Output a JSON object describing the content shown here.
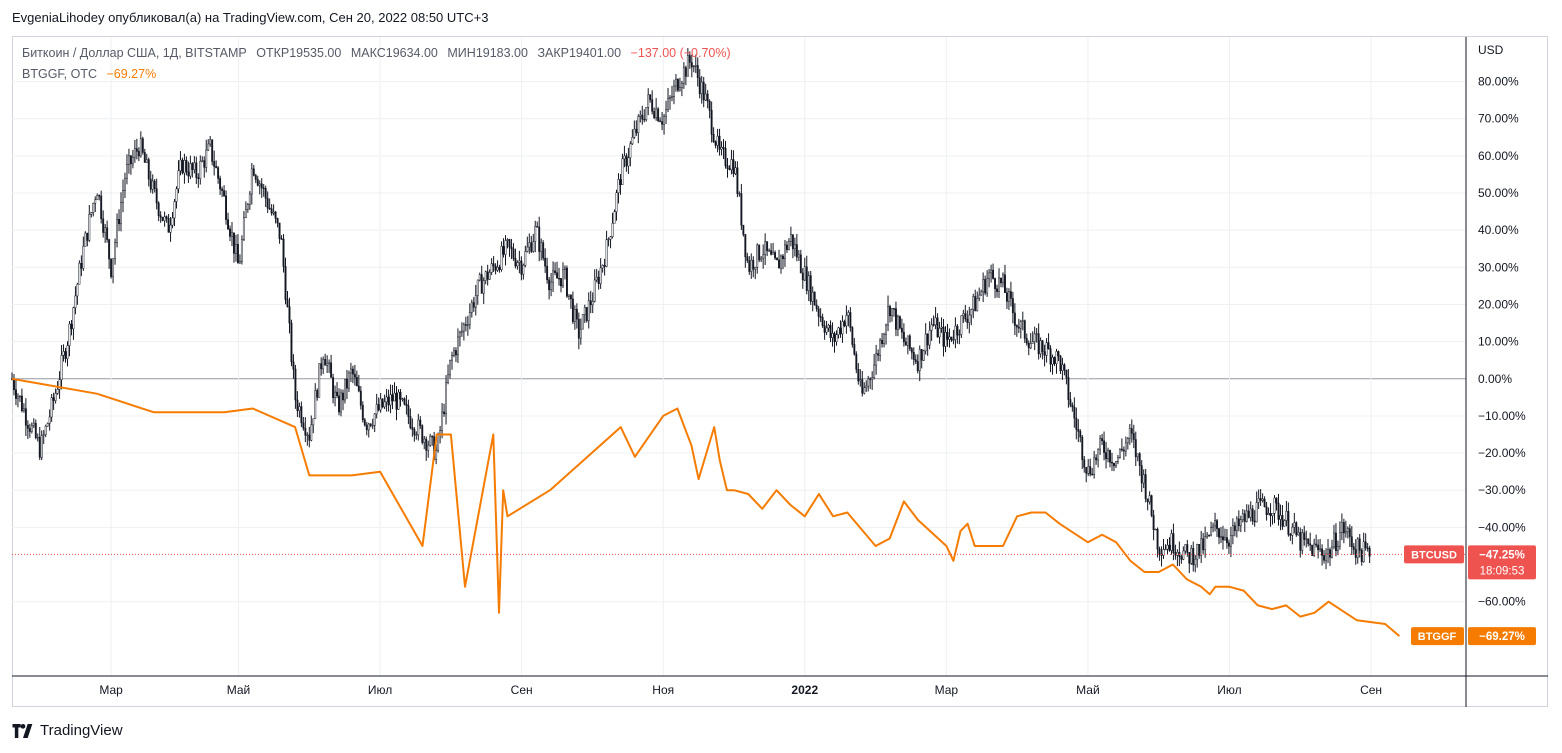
{
  "header": {
    "publisher_text": "EvgeniaLihodey опубликовал(а) на TradingView.com, Сен 20, 2022 08:50 UTC+3"
  },
  "legend": {
    "main_symbol": "Биткоин / Доллар США, 1Д, BITSTAMP",
    "open_label": "ОТКР",
    "open_value": "19535.00",
    "high_label": "МАКС",
    "high_value": "19634.00",
    "low_label": "МИН",
    "low_value": "19183.00",
    "close_label": "ЗАКР",
    "close_value": "19401.00",
    "change": "−137.00 (−0.70%)",
    "compare_symbol": "BTGGF, OTC",
    "compare_change": "−69.27%"
  },
  "footer": {
    "brand": "TradingView"
  },
  "colors": {
    "candle": "#131722",
    "compare_line": "#f57c00",
    "btc_badge": "#ef5350",
    "btggf_badge": "#f57c00",
    "grid": "#eef0f3",
    "zero_line": "#9598a1"
  },
  "chart_data": {
    "type": "line",
    "title": "Биткоин / Доллар США, 1Д, BITSTAMP vs BTGGF, OTC",
    "xlabel": "",
    "ylabel": "USD",
    "y_unit_label": "USD",
    "ylim": [
      -80,
      92
    ],
    "y_ticks": [
      80,
      70,
      60,
      50,
      40,
      30,
      20,
      10,
      0,
      -10,
      -20,
      -30,
      -40,
      -60
    ],
    "y_tick_labels": [
      "80.00%",
      "70.00%",
      "60.00%",
      "50.00%",
      "40.00%",
      "30.00%",
      "20.00%",
      "10.00%",
      "0.00%",
      "−10.00%",
      "−20.00%",
      "−30.00%",
      "−40.00%",
      "−60.00%"
    ],
    "x_range": [
      0,
      102
    ],
    "x_ticks": [
      7,
      16,
      26,
      36,
      46,
      56,
      66,
      76,
      86,
      96
    ],
    "x_tick_labels": [
      "Мар",
      "Май",
      "Июл",
      "Сен",
      "Ноя",
      "2022",
      "Мар",
      "Май",
      "Июл",
      "Сен"
    ],
    "series": [
      {
        "name": "BTCUSD",
        "style": "candles",
        "last_label": "−47.25%",
        "countdown": "18:09:53",
        "points": [
          [
            0,
            0
          ],
          [
            1,
            -10
          ],
          [
            2,
            -19
          ],
          [
            3,
            -5
          ],
          [
            4,
            12
          ],
          [
            5,
            34
          ],
          [
            6,
            52
          ],
          [
            7,
            30
          ],
          [
            8,
            55
          ],
          [
            9,
            63
          ],
          [
            10,
            50
          ],
          [
            11,
            40
          ],
          [
            12,
            58
          ],
          [
            13,
            55
          ],
          [
            14,
            62
          ],
          [
            15,
            48
          ],
          [
            16,
            30
          ],
          [
            17,
            58
          ],
          [
            18,
            48
          ],
          [
            19,
            38
          ],
          [
            20,
            -5
          ],
          [
            21,
            -15
          ],
          [
            22,
            8
          ],
          [
            23,
            -8
          ],
          [
            24,
            2
          ],
          [
            25,
            -12
          ],
          [
            26,
            -8
          ],
          [
            27,
            -5
          ],
          [
            28,
            -10
          ],
          [
            29,
            -15
          ],
          [
            30,
            -20
          ],
          [
            31,
            5
          ],
          [
            32,
            15
          ],
          [
            33,
            25
          ],
          [
            34,
            30
          ],
          [
            35,
            35
          ],
          [
            36,
            31
          ],
          [
            37,
            40
          ],
          [
            38,
            26
          ],
          [
            39,
            28
          ],
          [
            40,
            12
          ],
          [
            41,
            22
          ],
          [
            42,
            35
          ],
          [
            43,
            55
          ],
          [
            44,
            66
          ],
          [
            45,
            75
          ],
          [
            46,
            70
          ],
          [
            47,
            80
          ],
          [
            48,
            86
          ],
          [
            49,
            75
          ],
          [
            50,
            60
          ],
          [
            51,
            58
          ],
          [
            52,
            30
          ],
          [
            53,
            35
          ],
          [
            54,
            30
          ],
          [
            55,
            38
          ],
          [
            56,
            28
          ],
          [
            57,
            18
          ],
          [
            58,
            10
          ],
          [
            59,
            18
          ],
          [
            60,
            -5
          ],
          [
            61,
            5
          ],
          [
            62,
            20
          ],
          [
            63,
            10
          ],
          [
            64,
            5
          ],
          [
            65,
            15
          ],
          [
            66,
            10
          ],
          [
            67,
            15
          ],
          [
            68,
            20
          ],
          [
            69,
            28
          ],
          [
            70,
            25
          ],
          [
            71,
            15
          ],
          [
            72,
            10
          ],
          [
            73,
            8
          ],
          [
            74,
            5
          ],
          [
            75,
            -10
          ],
          [
            76,
            -25
          ],
          [
            77,
            -18
          ],
          [
            78,
            -22
          ],
          [
            79,
            -15
          ],
          [
            80,
            -28
          ],
          [
            81,
            -45
          ],
          [
            82,
            -44
          ],
          [
            83,
            -48
          ],
          [
            84,
            -46
          ],
          [
            85,
            -40
          ],
          [
            86,
            -43
          ],
          [
            87,
            -38
          ],
          [
            88,
            -35
          ],
          [
            89,
            -34
          ],
          [
            90,
            -38
          ],
          [
            91,
            -44
          ],
          [
            92,
            -46
          ],
          [
            93,
            -47
          ],
          [
            94,
            -40
          ],
          [
            95,
            -46
          ],
          [
            96,
            -47.25
          ]
        ]
      },
      {
        "name": "BTGGF",
        "style": "line",
        "last_label": "−69.27%",
        "points": [
          [
            0,
            0
          ],
          [
            6,
            -4
          ],
          [
            10,
            -9
          ],
          [
            15,
            -9
          ],
          [
            17,
            -8
          ],
          [
            20,
            -13
          ],
          [
            21,
            -26
          ],
          [
            24,
            -26
          ],
          [
            26,
            -25
          ],
          [
            29,
            -45
          ],
          [
            30,
            -15
          ],
          [
            31,
            -15
          ],
          [
            32,
            -56
          ],
          [
            34,
            -15
          ],
          [
            34.4,
            -63
          ],
          [
            34.7,
            -30
          ],
          [
            35,
            -37
          ],
          [
            38,
            -30
          ],
          [
            43,
            -13
          ],
          [
            44,
            -21
          ],
          [
            46,
            -10
          ],
          [
            47,
            -8
          ],
          [
            48,
            -18
          ],
          [
            48.5,
            -27
          ],
          [
            49.6,
            -13
          ],
          [
            50,
            -22
          ],
          [
            50.5,
            -30
          ],
          [
            51,
            -30
          ],
          [
            52,
            -31
          ],
          [
            53,
            -35
          ],
          [
            54,
            -30
          ],
          [
            55,
            -34
          ],
          [
            56,
            -37
          ],
          [
            57,
            -31
          ],
          [
            58,
            -37
          ],
          [
            59,
            -36
          ],
          [
            61,
            -45
          ],
          [
            62,
            -43
          ],
          [
            63,
            -33
          ],
          [
            64,
            -38
          ],
          [
            66,
            -45
          ],
          [
            66.5,
            -49
          ],
          [
            67,
            -41
          ],
          [
            67.5,
            -39
          ],
          [
            68,
            -45
          ],
          [
            70,
            -45
          ],
          [
            71,
            -37
          ],
          [
            72,
            -36
          ],
          [
            73,
            -36
          ],
          [
            74,
            -39
          ],
          [
            76,
            -44
          ],
          [
            77,
            -42
          ],
          [
            78,
            -44
          ],
          [
            79,
            -49
          ],
          [
            80,
            -52
          ],
          [
            81,
            -52
          ],
          [
            82,
            -50
          ],
          [
            83,
            -54
          ],
          [
            84,
            -56
          ],
          [
            84.6,
            -58
          ],
          [
            85,
            -56
          ],
          [
            86,
            -56
          ],
          [
            87,
            -57
          ],
          [
            88,
            -61
          ],
          [
            89,
            -62
          ],
          [
            90,
            -61
          ],
          [
            91,
            -64
          ],
          [
            92,
            -63
          ],
          [
            93,
            -60
          ],
          [
            95,
            -65
          ],
          [
            97,
            -66
          ],
          [
            98,
            -69.27
          ]
        ]
      }
    ]
  }
}
